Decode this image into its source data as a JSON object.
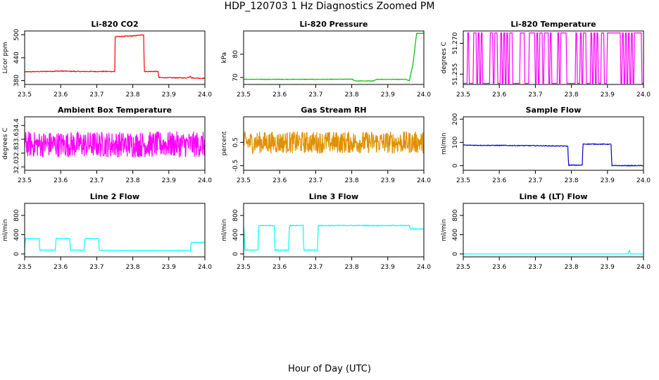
{
  "figure": {
    "title": "HDP_120703  1 Hz Diagnostics Zoomed PM",
    "xlabel": "Hour of Day (UTC)"
  },
  "chart_data": [
    {
      "type": "line",
      "title": "Li-820 CO2",
      "ylabel": "Licor ppm",
      "color": "#ff0000",
      "xlim": [
        23.5,
        24.0
      ],
      "ylim": [
        370,
        510
      ],
      "xticks": [
        "23.5",
        "23.6",
        "23.7",
        "23.8",
        "23.9",
        "24.0"
      ],
      "yticks": [
        "380",
        "440",
        "500"
      ],
      "series": [
        {
          "x": [
            23.5,
            23.55,
            23.6,
            23.65,
            23.7,
            23.75,
            23.751,
            23.8,
            23.83,
            23.832,
            23.87,
            23.872,
            23.95,
            23.96,
            23.962,
            24.0
          ],
          "values": [
            403,
            404,
            405,
            404,
            404,
            404,
            495,
            497,
            500,
            404,
            404,
            388,
            387,
            392,
            387,
            386
          ],
          "noise": 1
        }
      ]
    },
    {
      "type": "line",
      "title": "Li-820 Pressure",
      "ylabel": "kPa",
      "color": "#00c000",
      "xlim": [
        23.5,
        24.0
      ],
      "ylim": [
        67,
        90
      ],
      "xticks": [
        "23.5",
        "23.6",
        "23.7",
        "23.8",
        "23.9",
        "24.0"
      ],
      "yticks": [
        "70",
        "80"
      ],
      "series": [
        {
          "x": [
            23.5,
            23.75,
            23.8,
            23.81,
            23.86,
            23.87,
            23.95,
            23.96,
            23.97,
            23.98,
            24.0
          ],
          "values": [
            69.2,
            69.2,
            69.3,
            68.5,
            68.5,
            69.2,
            69.2,
            68.6,
            76,
            89,
            89
          ],
          "noise": 0.1
        }
      ]
    },
    {
      "type": "line",
      "title": "Li-820 Temperature",
      "ylabel": "degrees C",
      "color": "#ff00ff",
      "xlim": [
        23.5,
        24.0
      ],
      "ylim": [
        51.25,
        51.276
      ],
      "xticks": [
        "23.5",
        "23.6",
        "23.7",
        "23.8",
        "23.9",
        "24.0"
      ],
      "yticks": [
        "51.255",
        "51.270"
      ],
      "series": [
        {
          "low": 51.2505,
          "high": 51.275,
          "pattern": "binary"
        }
      ]
    },
    {
      "type": "line",
      "title": "Ambient Box Temperature",
      "ylabel": "degrees C",
      "color": "#ff00ff",
      "xlim": [
        23.5,
        24.0
      ],
      "ylim": [
        31.8,
        34.9
      ],
      "xticks": [
        "23.5",
        "23.6",
        "23.7",
        "23.8",
        "23.9",
        "24.0"
      ],
      "yticks": [
        "32.0",
        "32.8",
        "33.6",
        "34.4"
      ],
      "series": [
        {
          "mean": 33.3,
          "spread": 1.5,
          "pattern": "noise"
        }
      ]
    },
    {
      "type": "line",
      "title": "Gas Stream RH",
      "ylabel": "percent",
      "color": "#e09000",
      "xlim": [
        23.5,
        24.0
      ],
      "ylim": [
        -0.7,
        1.6
      ],
      "xticks": [
        "23.5",
        "23.6",
        "23.7",
        "23.8",
        "23.9",
        "24.0"
      ],
      "yticks": [
        "-0.5",
        "0.5"
      ],
      "series": [
        {
          "mean": 0.5,
          "spread": 0.95,
          "pattern": "noise"
        }
      ]
    },
    {
      "type": "line",
      "title": "Sample Flow",
      "ylabel": "ml/min",
      "color": "#0000cc",
      "xlim": [
        23.5,
        24.0
      ],
      "ylim": [
        -20,
        210
      ],
      "xticks": [
        "23.5",
        "23.6",
        "23.7",
        "23.8",
        "23.9",
        "24.0"
      ],
      "yticks": [
        "0",
        "100",
        "200"
      ],
      "series": [
        {
          "x": [
            23.5,
            23.6,
            23.7,
            23.79,
            23.792,
            23.83,
            23.832,
            23.91,
            23.912,
            24.0
          ],
          "values": [
            88,
            87,
            86,
            84,
            2,
            2,
            93,
            92,
            0,
            0
          ],
          "noise": 1.5
        }
      ]
    },
    {
      "type": "line",
      "title": "Line 2 Flow",
      "ylabel": "ml/min",
      "color": "#00ffff",
      "xlim": [
        23.5,
        24.0
      ],
      "ylim": [
        -60,
        1050
      ],
      "xticks": [
        "23.5",
        "23.6",
        "23.7",
        "23.8",
        "23.9",
        "24.0"
      ],
      "yticks": [
        "0",
        "400",
        "800"
      ],
      "series": [
        {
          "x": [
            23.5,
            23.502,
            23.54,
            23.542,
            23.585,
            23.587,
            23.625,
            23.627,
            23.665,
            23.667,
            23.705,
            23.707,
            23.75,
            23.96,
            23.962,
            24.0
          ],
          "values": [
            90,
            320,
            320,
            80,
            80,
            320,
            320,
            80,
            80,
            320,
            320,
            80,
            70,
            70,
            240,
            240
          ],
          "noise": 3
        }
      ]
    },
    {
      "type": "line",
      "title": "Line 3 Flow",
      "ylabel": "ml/min",
      "color": "#00ffff",
      "xlim": [
        23.5,
        24.0
      ],
      "ylim": [
        -60,
        1050
      ],
      "xticks": [
        "23.5",
        "23.6",
        "23.7",
        "23.8",
        "23.9",
        "24.0"
      ],
      "yticks": [
        "0",
        "400",
        "800"
      ],
      "series": [
        {
          "x": [
            23.5,
            23.501,
            23.503,
            23.54,
            23.542,
            23.585,
            23.587,
            23.625,
            23.627,
            23.665,
            23.667,
            23.705,
            23.707,
            23.96,
            23.962,
            24.0
          ],
          "values": [
            580,
            580,
            80,
            80,
            590,
            590,
            80,
            80,
            590,
            590,
            80,
            80,
            590,
            590,
            520,
            520
          ],
          "noise": 8
        }
      ]
    },
    {
      "type": "line",
      "title": "Line 4 (LT) Flow",
      "ylabel": "ml/min",
      "color": "#00ffff",
      "xlim": [
        23.5,
        24.0
      ],
      "ylim": [
        -60,
        1050
      ],
      "xticks": [
        "23.5",
        "23.6",
        "23.7",
        "23.8",
        "23.9",
        "24.0"
      ],
      "yticks": [
        "0",
        "400",
        "800"
      ],
      "series": [
        {
          "x": [
            23.5,
            23.958,
            23.959,
            23.962,
            23.963,
            24.0
          ],
          "values": [
            0,
            0,
            70,
            70,
            0,
            0
          ],
          "noise": 0
        }
      ]
    }
  ]
}
